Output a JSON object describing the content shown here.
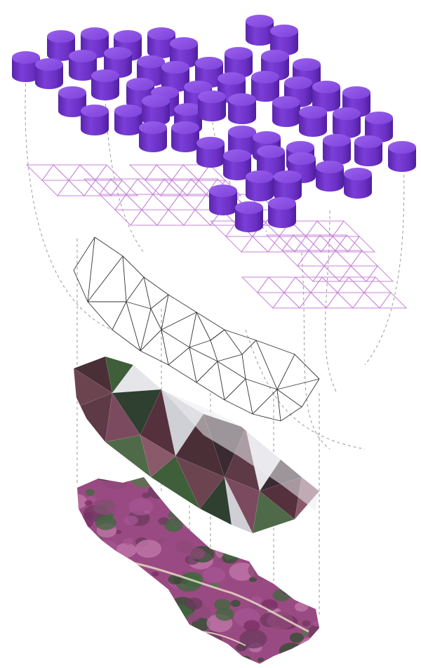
{
  "colors": {
    "cylinder_top": "#8a4fe0",
    "cylinder_body": "#6a2fc4",
    "cylinder_shade": "#4e1f99",
    "grid_line": "#c785d8",
    "mesh_line": "#333333",
    "leader_line": "#9a9a9a",
    "relief_dark": "#4a2f36",
    "relief_green": "#3f5e3a",
    "relief_light": "#e6e6ea",
    "terrain_pink": "#9a4a82",
    "terrain_green": "#3e6a3c"
  },
  "layers": [
    {
      "name": "cylinder-array-layer",
      "icon": "cylinder-icon"
    },
    {
      "name": "triangular-grid-layer",
      "icon": "grid-icon"
    },
    {
      "name": "triangulated-mesh-layer",
      "icon": "wireframe-icon"
    },
    {
      "name": "shaded-relief-layer",
      "icon": "relief-icon"
    },
    {
      "name": "aerial-terrain-layer",
      "icon": "terrain-icon"
    }
  ]
}
